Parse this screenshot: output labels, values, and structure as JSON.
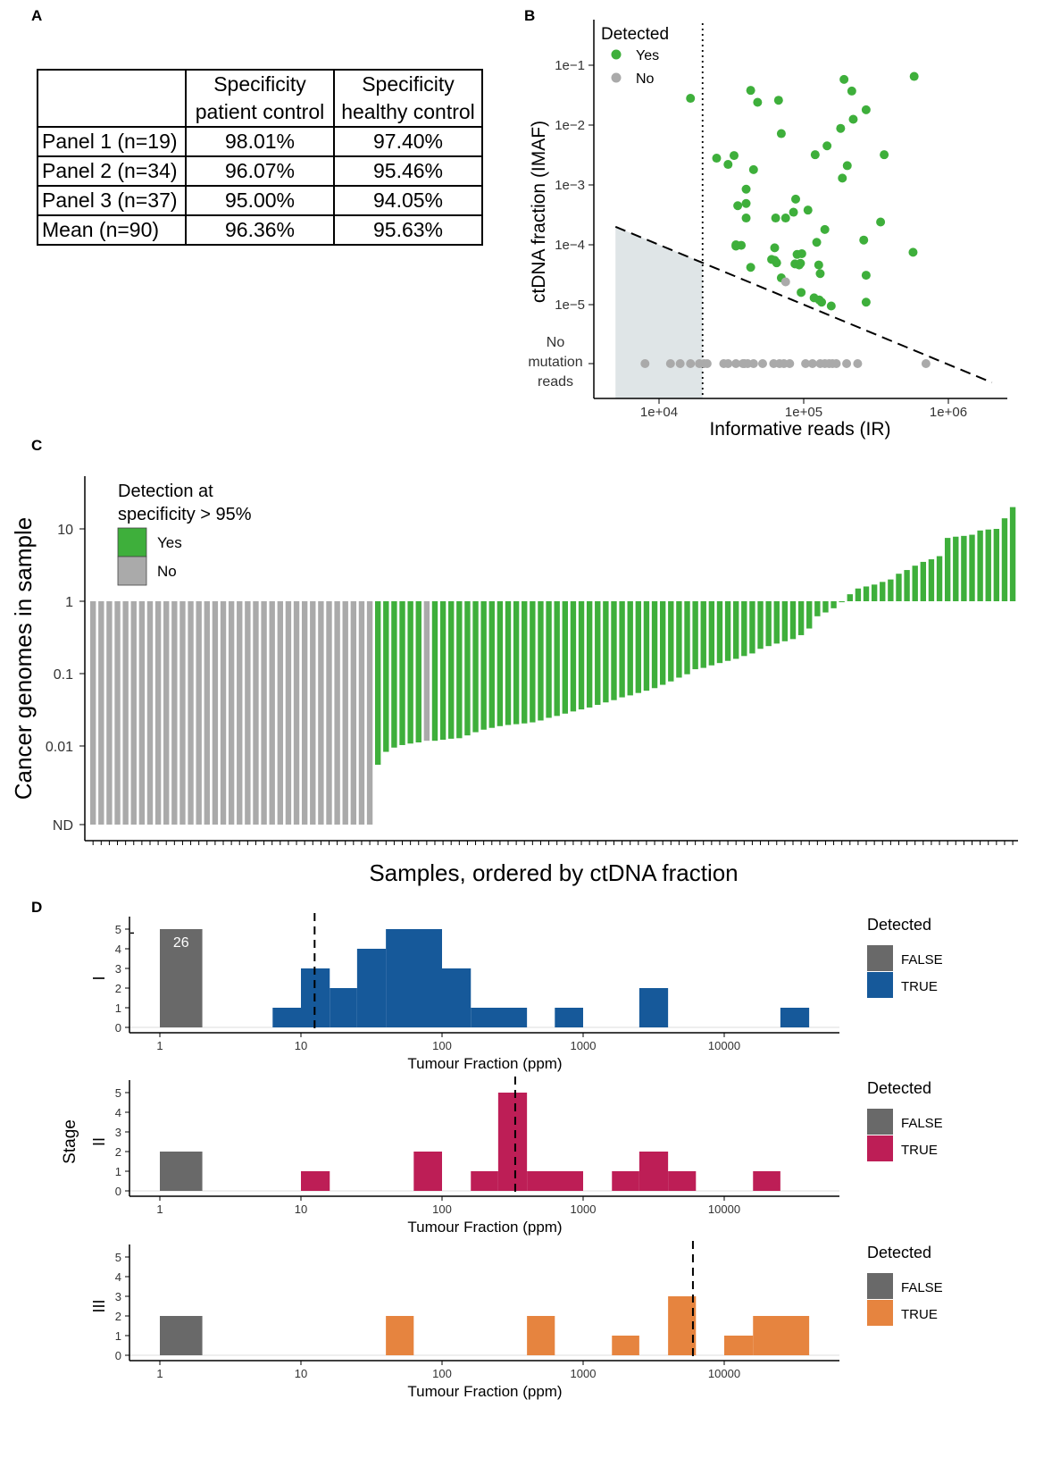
{
  "panel_labels": {
    "a": "A",
    "b": "B",
    "c": "C",
    "d": "D"
  },
  "colors": {
    "detected_yes": "#3eaf3b",
    "detected_no": "#aaaaaa",
    "false_bar": "#696969",
    "stage1": "#16599a",
    "stage2": "#bd1e56",
    "stage3": "#e6843f",
    "shade": "#dfe5e7"
  },
  "table": {
    "headers": [
      "",
      "Specificity\npatient control",
      "Specificity\nhealthy control"
    ],
    "rows": [
      [
        "Panel 1 (n=19)",
        "98.01%",
        "97.40%"
      ],
      [
        "Panel 2 (n=34)",
        "96.07%",
        "95.46%"
      ],
      [
        "Panel 3 (n=37)",
        "95.00%",
        "94.05%"
      ],
      [
        "Mean (n=90)",
        "96.36%",
        "95.63%"
      ]
    ]
  },
  "chart_data": [
    {
      "id": "B",
      "type": "scatter",
      "xlabel": "Informative reads (IR)",
      "ylabel": "ctDNA fraction (IMAF)",
      "x_scale": "log",
      "y_scale": "log",
      "xticks": [
        "1e+04",
        "1e+05",
        "1e+06"
      ],
      "yticks": [
        "1e−1",
        "1e−2",
        "1e−3",
        "1e−4",
        "1e−5"
      ],
      "y_no_mutation_label": "No\nmutation\nreads",
      "legend": {
        "title": "Detected",
        "entries": [
          "Yes",
          "No"
        ],
        "position": "top-left"
      },
      "vline_x": 20000,
      "threshold_line": [
        [
          5000,
          0.0002
        ],
        [
          2000000,
          5e-07
        ]
      ],
      "series": [
        {
          "name": "Yes",
          "points": [
            [
              16500,
              0.028
            ],
            [
              580000,
              0.065
            ],
            [
              190000,
              0.058
            ],
            [
              43000,
              0.038
            ],
            [
              67000,
              0.026
            ],
            [
              215000,
              0.037
            ],
            [
              48000,
              0.024
            ],
            [
              270000,
              0.018
            ],
            [
              220000,
              0.0125
            ],
            [
              180000,
              0.0088
            ],
            [
              70000,
              0.0072
            ],
            [
              25000,
              0.0028
            ],
            [
              33000,
              0.0031
            ],
            [
              30000,
              0.0022
            ],
            [
              145000,
              0.0045
            ],
            [
              120000,
              0.0032
            ],
            [
              200000,
              0.0021
            ],
            [
              360000,
              0.0032
            ],
            [
              45000,
              0.0018
            ],
            [
              185000,
              0.0013
            ],
            [
              40000,
              0.00085
            ],
            [
              88000,
              0.00058
            ],
            [
              35000,
              0.00045
            ],
            [
              64000,
              0.00028
            ],
            [
              40000,
              0.00049
            ],
            [
              85000,
              0.00035
            ],
            [
              107000,
              0.00038
            ],
            [
              75000,
              0.00028
            ],
            [
              40000,
              0.00028
            ],
            [
              140000,
              0.00018
            ],
            [
              340000,
              0.00024
            ],
            [
              34000,
              0.0001
            ],
            [
              37000,
              9.8e-05
            ],
            [
              63000,
              8.9e-05
            ],
            [
              260000,
              0.00012
            ],
            [
              123000,
              0.00011
            ],
            [
              90000,
              6.9e-05
            ],
            [
              97000,
              7.1e-05
            ],
            [
              34000,
              9.5e-05
            ],
            [
              60000,
              5.7e-05
            ],
            [
              65000,
              5e-05
            ],
            [
              87000,
              4.8e-05
            ],
            [
              93000,
              4.6e-05
            ],
            [
              570000,
              7.5e-05
            ],
            [
              63000,
              5.5e-05
            ],
            [
              43000,
              4.2e-05
            ],
            [
              127000,
              4.6e-05
            ],
            [
              95000,
              4.9e-05
            ],
            [
              130000,
              3.3e-05
            ],
            [
              270000,
              3.1e-05
            ],
            [
              70000,
              2.8e-05
            ],
            [
              96000,
              1.6e-05
            ],
            [
              118000,
              1.3e-05
            ],
            [
              128000,
              1.2e-05
            ],
            [
              133000,
              1.1e-05
            ],
            [
              270000,
              1.1e-05
            ],
            [
              155000,
              9.5e-06
            ]
          ]
        },
        {
          "name": "No",
          "points": [
            [
              75000,
              2.4e-05
            ],
            [
              8000,
              "ND"
            ],
            [
              12000,
              "ND"
            ],
            [
              14000,
              "ND"
            ],
            [
              16500,
              "ND"
            ],
            [
              19000,
              "ND"
            ],
            [
              20500,
              "ND"
            ],
            [
              21500,
              "ND"
            ],
            [
              28000,
              "ND"
            ],
            [
              30000,
              "ND"
            ],
            [
              34000,
              "ND"
            ],
            [
              38000,
              "ND"
            ],
            [
              39000,
              "ND"
            ],
            [
              41000,
              "ND"
            ],
            [
              45000,
              "ND"
            ],
            [
              52000,
              "ND"
            ],
            [
              62000,
              "ND"
            ],
            [
              68000,
              "ND"
            ],
            [
              73000,
              "ND"
            ],
            [
              80000,
              "ND"
            ],
            [
              103000,
              "ND"
            ],
            [
              115000,
              "ND"
            ],
            [
              130000,
              "ND"
            ],
            [
              140000,
              "ND"
            ],
            [
              150000,
              "ND"
            ],
            [
              158000,
              "ND"
            ],
            [
              168000,
              "ND"
            ],
            [
              198000,
              "ND"
            ],
            [
              236000,
              "ND"
            ],
            [
              700000,
              "ND"
            ]
          ]
        }
      ]
    },
    {
      "id": "C",
      "type": "bar",
      "xlabel": "Samples, ordered by ctDNA fraction",
      "ylabel": "Cancer genomes in sample",
      "y_scale": "log",
      "baseline": 1,
      "yticks": [
        "ND",
        "0.01",
        "0.1",
        "1",
        "10"
      ],
      "legend": {
        "title": "Detection at\nspecificity > 95%",
        "entries": [
          "Yes",
          "No"
        ],
        "position": "top-left"
      },
      "bars": [
        [
          "ND",
          "No"
        ],
        [
          "ND",
          "No"
        ],
        [
          "ND",
          "No"
        ],
        [
          "ND",
          "No"
        ],
        [
          "ND",
          "No"
        ],
        [
          "ND",
          "No"
        ],
        [
          "ND",
          "No"
        ],
        [
          "ND",
          "No"
        ],
        [
          "ND",
          "No"
        ],
        [
          "ND",
          "No"
        ],
        [
          "ND",
          "No"
        ],
        [
          "ND",
          "No"
        ],
        [
          "ND",
          "No"
        ],
        [
          "ND",
          "No"
        ],
        [
          "ND",
          "No"
        ],
        [
          "ND",
          "No"
        ],
        [
          "ND",
          "No"
        ],
        [
          "ND",
          "No"
        ],
        [
          "ND",
          "No"
        ],
        [
          "ND",
          "No"
        ],
        [
          "ND",
          "No"
        ],
        [
          "ND",
          "No"
        ],
        [
          "ND",
          "No"
        ],
        [
          "ND",
          "No"
        ],
        [
          "ND",
          "No"
        ],
        [
          "ND",
          "No"
        ],
        [
          "ND",
          "No"
        ],
        [
          "ND",
          "No"
        ],
        [
          "ND",
          "No"
        ],
        [
          "ND",
          "No"
        ],
        [
          "ND",
          "No"
        ],
        [
          "ND",
          "No"
        ],
        [
          "ND",
          "No"
        ],
        [
          "ND",
          "No"
        ],
        [
          "ND",
          "No"
        ],
        [
          0.0055,
          "Yes"
        ],
        [
          0.0083,
          "Yes"
        ],
        [
          0.0095,
          "Yes"
        ],
        [
          0.0103,
          "Yes"
        ],
        [
          0.0108,
          "Yes"
        ],
        [
          0.0112,
          "Yes"
        ],
        [
          0.0118,
          "No"
        ],
        [
          0.0118,
          "Yes"
        ],
        [
          0.0122,
          "Yes"
        ],
        [
          0.0126,
          "Yes"
        ],
        [
          0.0128,
          "Yes"
        ],
        [
          0.014,
          "Yes"
        ],
        [
          0.0155,
          "Yes"
        ],
        [
          0.0168,
          "Yes"
        ],
        [
          0.0178,
          "Yes"
        ],
        [
          0.0188,
          "Yes"
        ],
        [
          0.0195,
          "Yes"
        ],
        [
          0.02,
          "Yes"
        ],
        [
          0.0205,
          "Yes"
        ],
        [
          0.0212,
          "Yes"
        ],
        [
          0.0225,
          "Yes"
        ],
        [
          0.0245,
          "Yes"
        ],
        [
          0.026,
          "Yes"
        ],
        [
          0.028,
          "Yes"
        ],
        [
          0.03,
          "Yes"
        ],
        [
          0.032,
          "Yes"
        ],
        [
          0.034,
          "Yes"
        ],
        [
          0.037,
          "Yes"
        ],
        [
          0.04,
          "Yes"
        ],
        [
          0.043,
          "Yes"
        ],
        [
          0.047,
          "Yes"
        ],
        [
          0.05,
          "Yes"
        ],
        [
          0.054,
          "Yes"
        ],
        [
          0.058,
          "Yes"
        ],
        [
          0.063,
          "Yes"
        ],
        [
          0.07,
          "Yes"
        ],
        [
          0.078,
          "Yes"
        ],
        [
          0.088,
          "Yes"
        ],
        [
          0.098,
          "Yes"
        ],
        [
          0.115,
          "Yes"
        ],
        [
          0.12,
          "Yes"
        ],
        [
          0.13,
          "Yes"
        ],
        [
          0.14,
          "Yes"
        ],
        [
          0.15,
          "Yes"
        ],
        [
          0.16,
          "Yes"
        ],
        [
          0.175,
          "Yes"
        ],
        [
          0.19,
          "Yes"
        ],
        [
          0.22,
          "Yes"
        ],
        [
          0.24,
          "Yes"
        ],
        [
          0.26,
          "Yes"
        ],
        [
          0.28,
          "Yes"
        ],
        [
          0.3,
          "Yes"
        ],
        [
          0.34,
          "Yes"
        ],
        [
          0.42,
          "Yes"
        ],
        [
          0.62,
          "Yes"
        ],
        [
          0.7,
          "Yes"
        ],
        [
          0.8,
          "Yes"
        ],
        [
          0.97,
          "Yes"
        ],
        [
          1.25,
          "Yes"
        ],
        [
          1.5,
          "Yes"
        ],
        [
          1.6,
          "Yes"
        ],
        [
          1.7,
          "Yes"
        ],
        [
          1.85,
          "Yes"
        ],
        [
          2.0,
          "Yes"
        ],
        [
          2.4,
          "Yes"
        ],
        [
          2.7,
          "Yes"
        ],
        [
          3.1,
          "Yes"
        ],
        [
          3.5,
          "Yes"
        ],
        [
          3.8,
          "Yes"
        ],
        [
          4.2,
          "Yes"
        ],
        [
          7.5,
          "Yes"
        ],
        [
          7.8,
          "Yes"
        ],
        [
          8.0,
          "Yes"
        ],
        [
          8.3,
          "Yes"
        ],
        [
          9.5,
          "Yes"
        ],
        [
          9.8,
          "Yes"
        ],
        [
          10,
          "Yes"
        ],
        [
          14,
          "Yes"
        ],
        [
          20,
          "Yes"
        ]
      ]
    },
    {
      "id": "D",
      "type": "bar",
      "facet_label": "Stage",
      "xlabel": "Tumour Fraction (ppm)",
      "x_scale": "log",
      "xticks": [
        "1",
        "10",
        "100",
        "1000",
        "10000"
      ],
      "yticks": [
        "0",
        "1",
        "2",
        "3",
        "4",
        "5"
      ],
      "legend": {
        "title": "Detected",
        "entries": [
          "FALSE",
          "TRUE"
        ],
        "position": "right"
      },
      "facets": [
        {
          "name": "I",
          "vline": 12.5,
          "false_bar": {
            "x": [
              1,
              2
            ],
            "y": 26,
            "label": "26"
          },
          "bins": [
            [
              6.3,
              10,
              1
            ],
            [
              10,
              16,
              3
            ],
            [
              16,
              25,
              2
            ],
            [
              25,
              40,
              4
            ],
            [
              40,
              100,
              5
            ],
            [
              100,
              160,
              3
            ],
            [
              160,
              400,
              1
            ],
            [
              630,
              1000,
              1
            ],
            [
              2500,
              4000,
              2
            ],
            [
              25000,
              40000,
              1
            ]
          ]
        },
        {
          "name": "II",
          "vline": 330,
          "false_bar": {
            "x": [
              1,
              2
            ],
            "y": 2
          },
          "bins": [
            [
              10,
              16,
              1
            ],
            [
              63,
              100,
              2
            ],
            [
              160,
              250,
              1
            ],
            [
              250,
              400,
              5
            ],
            [
              400,
              1000,
              1
            ],
            [
              1600,
              2500,
              1
            ],
            [
              2500,
              4000,
              2
            ],
            [
              4000,
              6300,
              1
            ],
            [
              16000,
              25000,
              1
            ]
          ]
        },
        {
          "name": "III",
          "vline": 6000,
          "false_bar": {
            "x": [
              1,
              2
            ],
            "y": 2
          },
          "bins": [
            [
              40,
              63,
              2
            ],
            [
              400,
              630,
              2
            ],
            [
              1600,
              2500,
              1
            ],
            [
              4000,
              6300,
              3
            ],
            [
              10000,
              16000,
              1
            ],
            [
              16000,
              40000,
              2
            ]
          ]
        }
      ]
    }
  ]
}
